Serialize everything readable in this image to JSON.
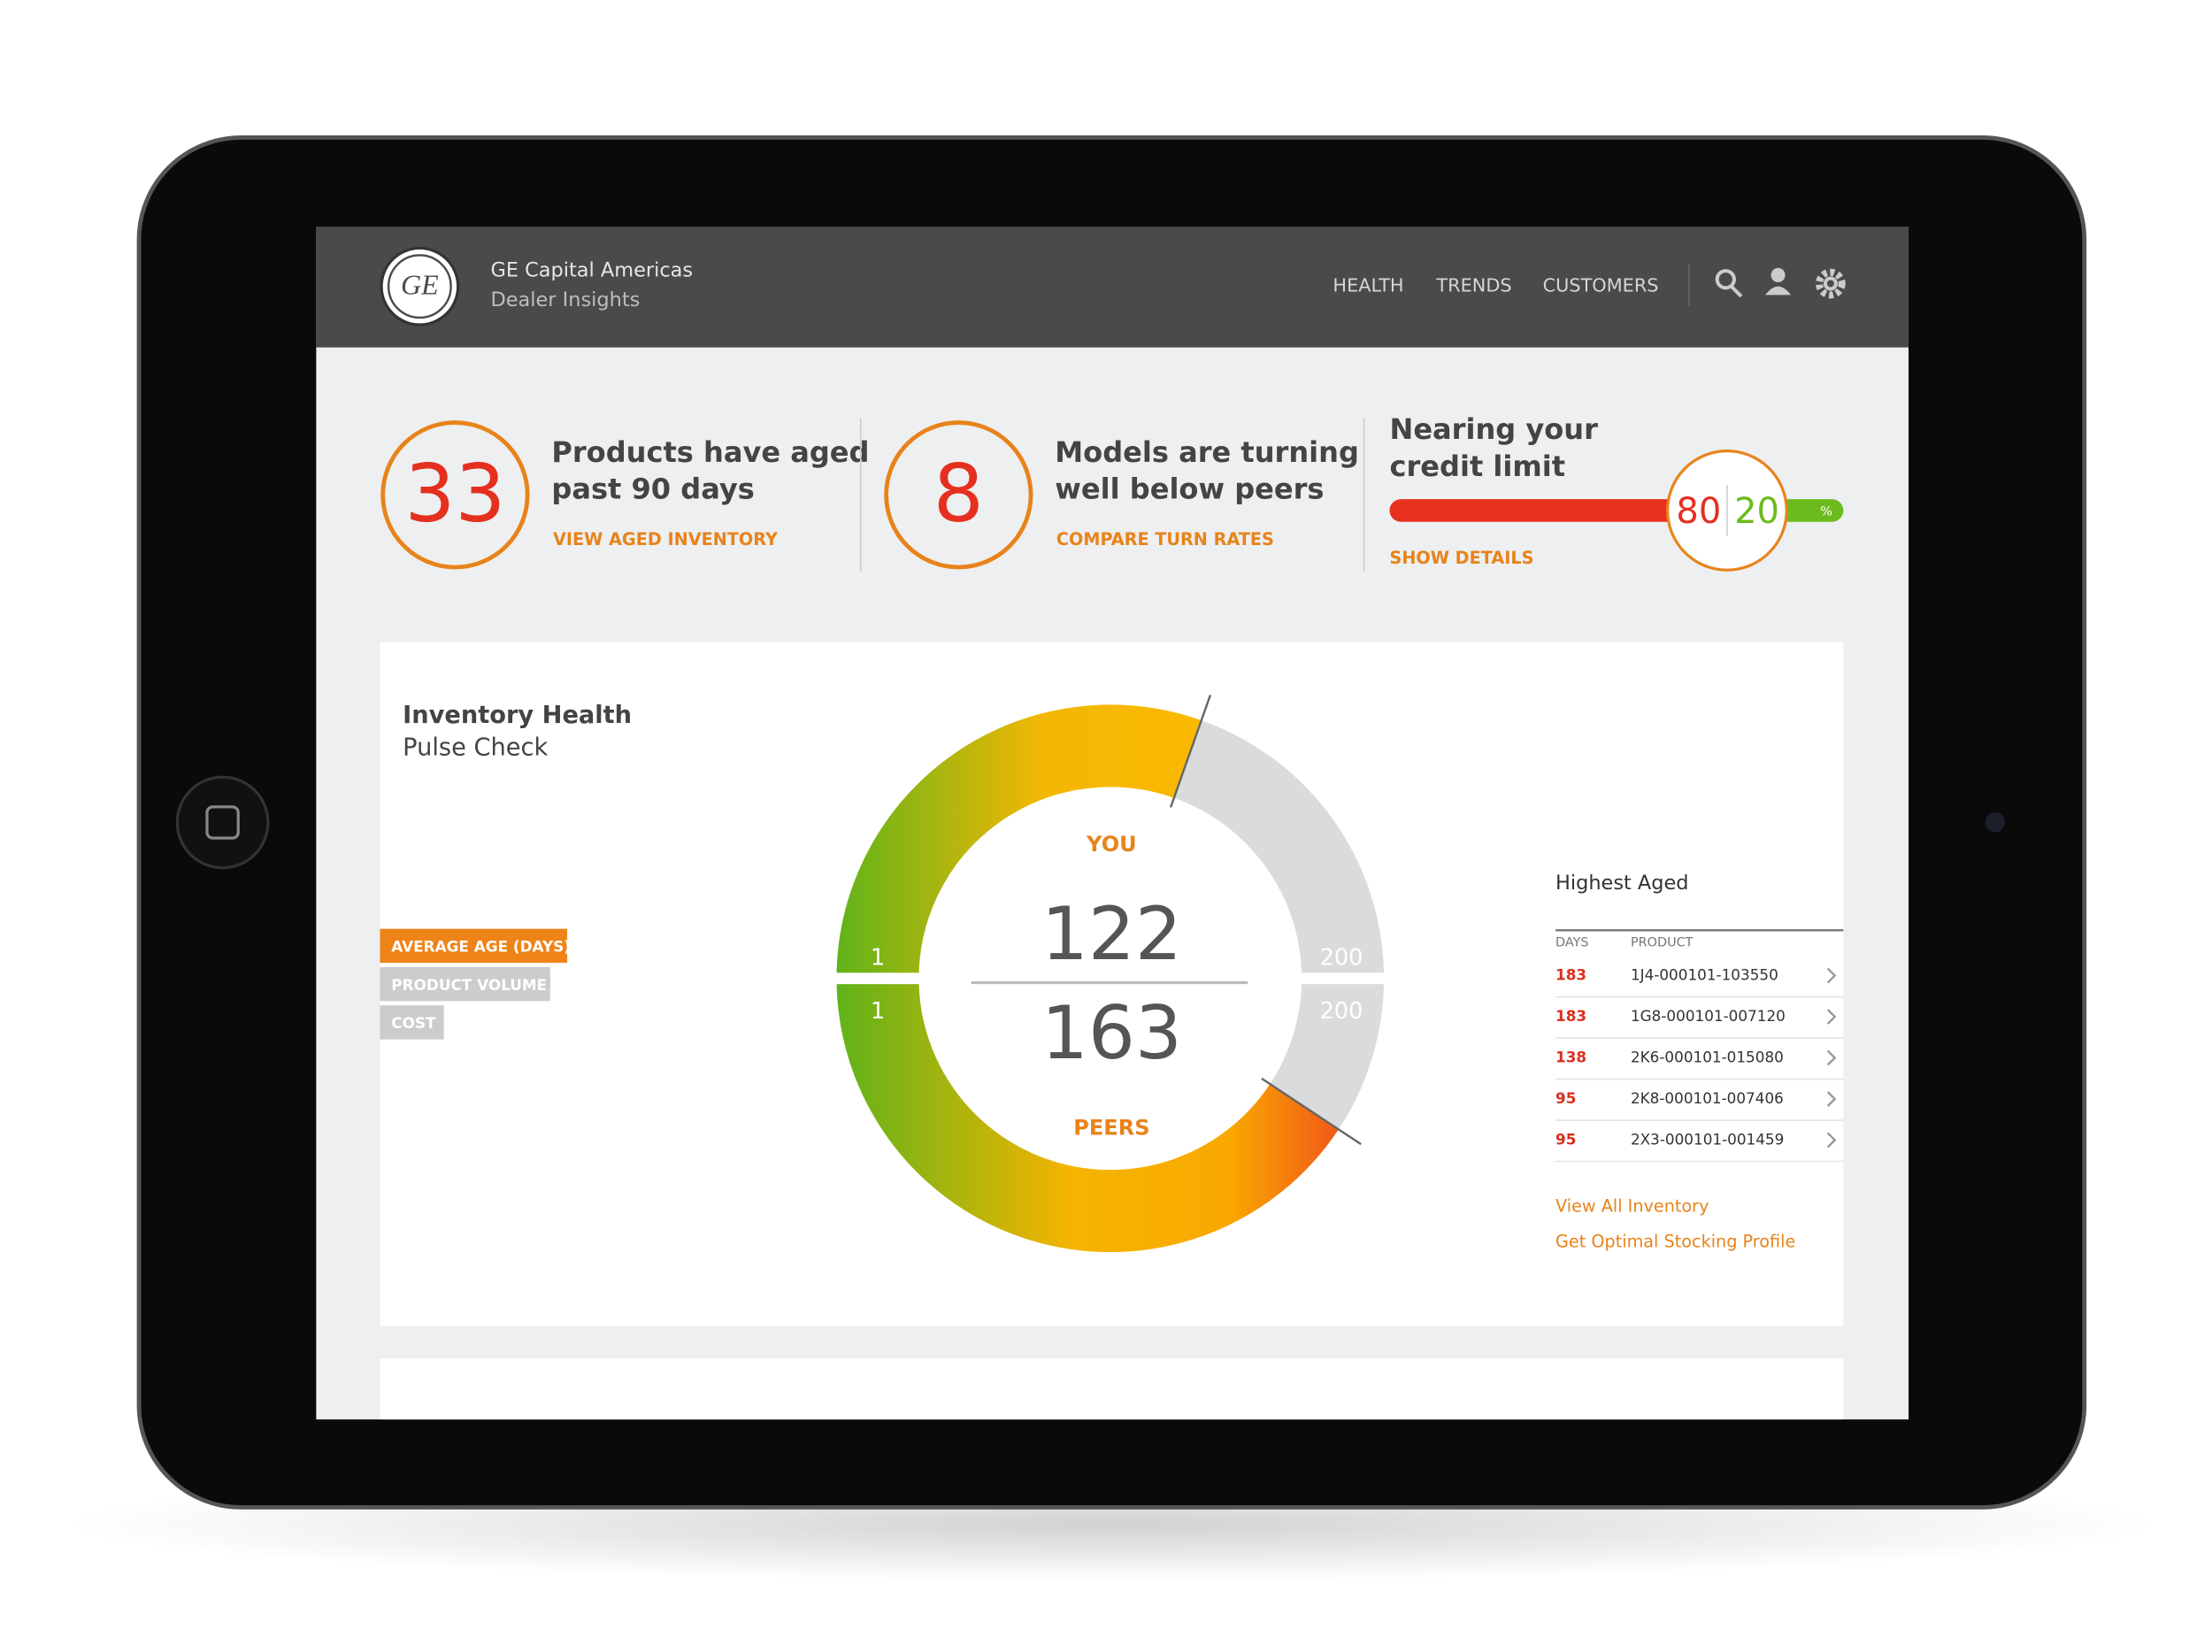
{
  "header": {
    "logo": "GE",
    "company": "GE Capital Americas",
    "app": "Dealer Insights",
    "nav": [
      "HEALTH",
      "TRENDS",
      "CUSTOMERS"
    ]
  },
  "kpis": [
    {
      "value": 33,
      "lines": [
        "Products have aged",
        "past 90 days"
      ],
      "link": "VIEW AGED INVENTORY"
    },
    {
      "value": 8,
      "lines": [
        "Models are turning",
        "well below peers"
      ],
      "link": "COMPARE TURN RATES"
    }
  ],
  "credit": {
    "lines": [
      "Nearing your",
      "credit limit"
    ],
    "used": 80,
    "available": 20,
    "unit": "%",
    "link": "SHOW DETAILS"
  },
  "inventory_health": {
    "title": "Inventory Health",
    "subtitle": "Pulse Check",
    "filters": [
      "AVERAGE AGE (DAYS)",
      "PRODUCT VOLUME",
      "COST"
    ],
    "gauge": {
      "you_label": "YOU",
      "you": 122,
      "you_min": 1,
      "you_max": 200,
      "peers_label": "PEERS",
      "peers": 163,
      "peers_min": 1,
      "peers_max": 200
    },
    "highest_aged": {
      "title": "Highest Aged",
      "columns": [
        "DAYS",
        "PRODUCT"
      ],
      "rows": [
        [
          183,
          "1J4-000101-103550"
        ],
        [
          183,
          "1G8-000101-007120"
        ],
        [
          138,
          "2K6-000101-015080"
        ],
        [
          95,
          "2K8-000101-007406"
        ],
        [
          95,
          "2X3-000101-001459"
        ]
      ],
      "links": [
        "View All Inventory",
        "Get Optimal Stocking Profile"
      ]
    }
  }
}
